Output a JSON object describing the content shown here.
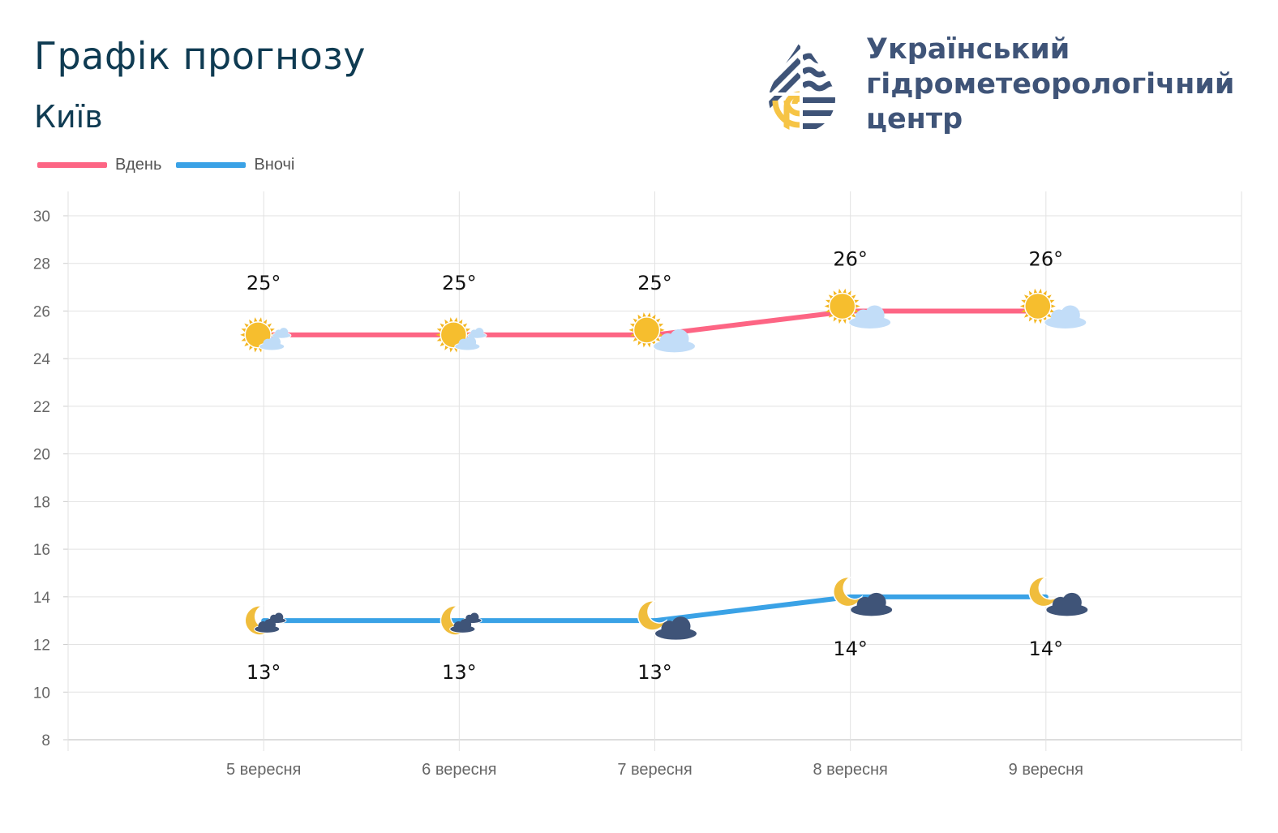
{
  "header": {
    "title": "Графік прогнозу",
    "city": "Київ"
  },
  "organization": {
    "line1": "Український",
    "line2": "гідрометеорологічний",
    "line3": "центр",
    "logo_colors": [
      "#3f5478",
      "#f6c445"
    ]
  },
  "chart_data": {
    "type": "line",
    "categories": [
      "5 вересня",
      "6 вересня",
      "7 вересня",
      "8 вересня",
      "9 вересня"
    ],
    "series": [
      {
        "name": "Вдень",
        "color": "#fd6584",
        "values": [
          25,
          25,
          25,
          26,
          26
        ],
        "labels": [
          "25°",
          "25°",
          "25°",
          "26°",
          "26°"
        ],
        "icons": [
          "sun-small-cloud",
          "sun-small-cloud",
          "sun-cloud",
          "sun-cloud",
          "sun-cloud"
        ]
      },
      {
        "name": "Вночі",
        "color": "#3aa2e6",
        "values": [
          13,
          13,
          13,
          14,
          14
        ],
        "labels": [
          "13°",
          "13°",
          "13°",
          "14°",
          "14°"
        ],
        "icons": [
          "moon-small-cloud",
          "moon-small-cloud",
          "moon-cloud",
          "moon-cloud",
          "moon-cloud"
        ]
      }
    ],
    "ylim": [
      8,
      30
    ],
    "yticks": [
      "8",
      "10",
      "12",
      "14",
      "16",
      "18",
      "20",
      "22",
      "24",
      "26",
      "28",
      "30"
    ],
    "grid": true,
    "legend": "top-left"
  }
}
